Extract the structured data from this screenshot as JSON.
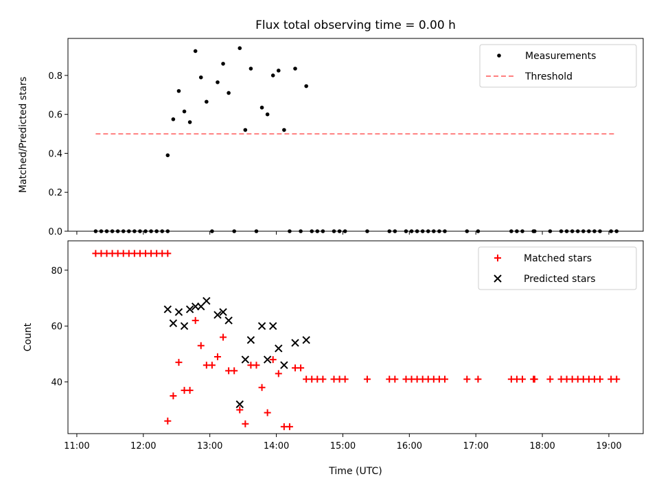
{
  "chart_data": {
    "title": "Flux total observing time = 0.00 h",
    "xlabel": "Time (UTC)",
    "x_ticks": [
      "11:00",
      "12:00",
      "13:00",
      "14:00",
      "15:00",
      "16:00",
      "17:00",
      "18:00",
      "19:00"
    ],
    "xlim": [
      "10:52",
      "19:31"
    ],
    "panels": [
      {
        "type": "scatter",
        "ylabel": "Matched/Predicted stars",
        "ylim": [
          0,
          0.99
        ],
        "y_ticks": [
          "0.0",
          "0.2",
          "0.4",
          "0.6",
          "0.8"
        ],
        "legend_position": "top-right",
        "threshold": {
          "name": "Threshold",
          "value": 0.5,
          "x_range": [
            "11:17",
            "19:05"
          ],
          "color": "#ff7f7f"
        },
        "series": [
          {
            "name": "Measurements",
            "color": "#000000",
            "marker": "dot",
            "points": [
              [
                "11:17",
                0
              ],
              [
                "11:22",
                0
              ],
              [
                "11:27",
                0
              ],
              [
                "11:32",
                0
              ],
              [
                "11:37",
                0
              ],
              [
                "11:42",
                0
              ],
              [
                "11:47",
                0
              ],
              [
                "11:52",
                0
              ],
              [
                "11:57",
                0
              ],
              [
                "12:02",
                0
              ],
              [
                "12:07",
                0
              ],
              [
                "12:12",
                0
              ],
              [
                "12:17",
                0
              ],
              [
                "12:22",
                0
              ],
              [
                "12:22",
                0.39
              ],
              [
                "12:27",
                0.575
              ],
              [
                "12:32",
                0.72
              ],
              [
                "12:37",
                0.615
              ],
              [
                "12:42",
                0.56
              ],
              [
                "12:47",
                0.925
              ],
              [
                "12:52",
                0.79
              ],
              [
                "12:57",
                0.665
              ],
              [
                "13:02",
                0
              ],
              [
                "13:07",
                0.765
              ],
              [
                "13:12",
                0.86
              ],
              [
                "13:17",
                0.71
              ],
              [
                "13:22",
                0
              ],
              [
                "13:27",
                0.94
              ],
              [
                "13:32",
                0.52
              ],
              [
                "13:37",
                0.835
              ],
              [
                "13:42",
                0
              ],
              [
                "13:47",
                0.635
              ],
              [
                "13:52",
                0.6
              ],
              [
                "13:57",
                0.8
              ],
              [
                "14:02",
                0.825
              ],
              [
                "14:07",
                0.52
              ],
              [
                "14:12",
                0
              ],
              [
                "14:17",
                0.835
              ],
              [
                "14:22",
                0
              ],
              [
                "14:27",
                0.745
              ],
              [
                "14:32",
                0
              ],
              [
                "14:37",
                0
              ],
              [
                "14:42",
                0
              ],
              [
                "14:52",
                0
              ],
              [
                "14:57",
                0
              ],
              [
                "15:02",
                0
              ],
              [
                "15:22",
                0
              ],
              [
                "15:42",
                0
              ],
              [
                "15:47",
                0
              ],
              [
                "15:57",
                0
              ],
              [
                "16:02",
                0
              ],
              [
                "16:07",
                0
              ],
              [
                "16:12",
                0
              ],
              [
                "16:17",
                0
              ],
              [
                "16:22",
                0
              ],
              [
                "16:27",
                0
              ],
              [
                "16:32",
                0
              ],
              [
                "16:52",
                0
              ],
              [
                "17:02",
                0
              ],
              [
                "17:32",
                0
              ],
              [
                "17:37",
                0
              ],
              [
                "17:42",
                0
              ],
              [
                "17:52",
                0
              ],
              [
                "17:53",
                0
              ],
              [
                "18:07",
                0
              ],
              [
                "18:17",
                0
              ],
              [
                "18:22",
                0
              ],
              [
                "18:27",
                0
              ],
              [
                "18:32",
                0
              ],
              [
                "18:37",
                0
              ],
              [
                "18:42",
                0
              ],
              [
                "18:47",
                0
              ],
              [
                "18:52",
                0
              ],
              [
                "19:02",
                0
              ],
              [
                "19:07",
                0
              ]
            ]
          }
        ]
      },
      {
        "type": "scatter",
        "ylabel": "Count",
        "ylim": [
          21.5,
          90.5
        ],
        "y_ticks": [
          "40",
          "60",
          "80"
        ],
        "legend_position": "top-right",
        "series": [
          {
            "name": "Matched stars",
            "color": "#ff0000",
            "marker": "plus",
            "points": [
              [
                "11:17",
                86
              ],
              [
                "11:22",
                86
              ],
              [
                "11:27",
                86
              ],
              [
                "11:32",
                86
              ],
              [
                "11:37",
                86
              ],
              [
                "11:42",
                86
              ],
              [
                "11:47",
                86
              ],
              [
                "11:52",
                86
              ],
              [
                "11:57",
                86
              ],
              [
                "12:02",
                86
              ],
              [
                "12:07",
                86
              ],
              [
                "12:12",
                86
              ],
              [
                "12:17",
                86
              ],
              [
                "12:22",
                86
              ],
              [
                "12:22",
                26
              ],
              [
                "12:27",
                35
              ],
              [
                "12:32",
                47
              ],
              [
                "12:37",
                37
              ],
              [
                "12:42",
                37
              ],
              [
                "12:47",
                62
              ],
              [
                "12:52",
                53
              ],
              [
                "12:57",
                46
              ],
              [
                "13:02",
                46
              ],
              [
                "13:07",
                49
              ],
              [
                "13:12",
                56
              ],
              [
                "13:17",
                44
              ],
              [
                "13:22",
                44
              ],
              [
                "13:27",
                30
              ],
              [
                "13:32",
                25
              ],
              [
                "13:37",
                46
              ],
              [
                "13:42",
                46
              ],
              [
                "13:47",
                38
              ],
              [
                "13:52",
                29
              ],
              [
                "13:57",
                48
              ],
              [
                "14:02",
                43
              ],
              [
                "14:07",
                24
              ],
              [
                "14:12",
                24
              ],
              [
                "14:17",
                45
              ],
              [
                "14:22",
                45
              ],
              [
                "14:27",
                41
              ],
              [
                "14:32",
                41
              ],
              [
                "14:37",
                41
              ],
              [
                "14:42",
                41
              ],
              [
                "14:52",
                41
              ],
              [
                "14:57",
                41
              ],
              [
                "15:02",
                41
              ],
              [
                "15:22",
                41
              ],
              [
                "15:42",
                41
              ],
              [
                "15:47",
                41
              ],
              [
                "15:57",
                41
              ],
              [
                "16:02",
                41
              ],
              [
                "16:07",
                41
              ],
              [
                "16:12",
                41
              ],
              [
                "16:17",
                41
              ],
              [
                "16:22",
                41
              ],
              [
                "16:27",
                41
              ],
              [
                "16:32",
                41
              ],
              [
                "16:52",
                41
              ],
              [
                "17:02",
                41
              ],
              [
                "17:32",
                41
              ],
              [
                "17:37",
                41
              ],
              [
                "17:42",
                41
              ],
              [
                "17:52",
                41
              ],
              [
                "17:53",
                41
              ],
              [
                "18:07",
                41
              ],
              [
                "18:17",
                41
              ],
              [
                "18:22",
                41
              ],
              [
                "18:27",
                41
              ],
              [
                "18:32",
                41
              ],
              [
                "18:37",
                41
              ],
              [
                "18:42",
                41
              ],
              [
                "18:47",
                41
              ],
              [
                "18:52",
                41
              ],
              [
                "19:02",
                41
              ],
              [
                "19:07",
                41
              ]
            ]
          },
          {
            "name": "Predicted stars",
            "color": "#000000",
            "marker": "x",
            "points": [
              [
                "12:22",
                66
              ],
              [
                "12:27",
                61
              ],
              [
                "12:32",
                65
              ],
              [
                "12:37",
                60
              ],
              [
                "12:42",
                66
              ],
              [
                "12:47",
                67
              ],
              [
                "12:52",
                67
              ],
              [
                "12:57",
                69
              ],
              [
                "13:07",
                64
              ],
              [
                "13:12",
                65
              ],
              [
                "13:17",
                62
              ],
              [
                "13:27",
                32
              ],
              [
                "13:32",
                48
              ],
              [
                "13:37",
                55
              ],
              [
                "13:47",
                60
              ],
              [
                "13:52",
                48
              ],
              [
                "13:57",
                60
              ],
              [
                "14:02",
                52
              ],
              [
                "14:07",
                46
              ],
              [
                "14:17",
                54
              ],
              [
                "14:27",
                55
              ]
            ]
          }
        ]
      }
    ]
  }
}
